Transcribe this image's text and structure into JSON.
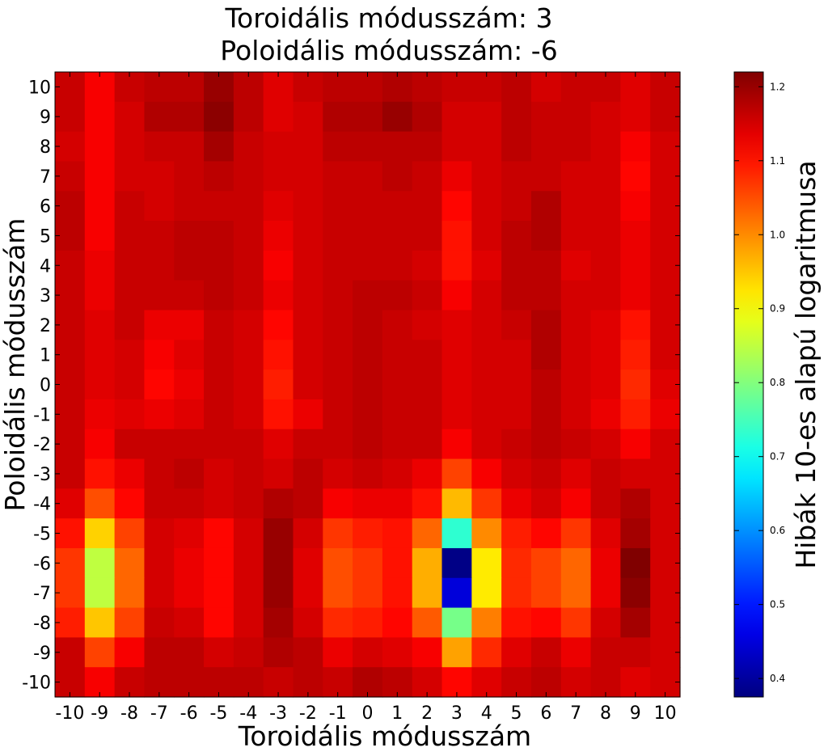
{
  "chart_data": {
    "type": "heatmap",
    "title": "Toroidális módusszám: 3",
    "subtitle": "Poloidális módusszám: -6",
    "xlabel": "Toroidális módusszám",
    "ylabel": "Poloidális módusszám",
    "colorbar_label": "Hibák 10-es alapú logaritmusa",
    "colormap": "jet",
    "color_range": [
      0.375,
      1.22
    ],
    "colorbar_ticks": [
      "0.4",
      "0.5",
      "0.6",
      "0.7",
      "0.8",
      "0.9",
      "1.0",
      "1.1",
      "1.2"
    ],
    "colorbar_tick_values": [
      0.4,
      0.5,
      0.6,
      0.7,
      0.8,
      0.9,
      1.0,
      1.1,
      1.2
    ],
    "x": [
      -10,
      -9,
      -8,
      -7,
      -6,
      -5,
      -4,
      -3,
      -2,
      -1,
      0,
      1,
      2,
      3,
      4,
      5,
      6,
      7,
      8,
      9,
      10
    ],
    "y": [
      10,
      9,
      8,
      7,
      6,
      5,
      4,
      3,
      2,
      1,
      0,
      -1,
      -2,
      -3,
      -4,
      -5,
      -6,
      -7,
      -8,
      -9,
      -10
    ],
    "x_tick_labels": [
      "-10",
      "-9",
      "-8",
      "-7",
      "-6",
      "-5",
      "-4",
      "-3",
      "-2",
      "-1",
      "0",
      "1",
      "2",
      "3",
      "4",
      "5",
      "6",
      "7",
      "8",
      "9",
      "10"
    ],
    "y_tick_labels": [
      "10",
      "9",
      "8",
      "7",
      "6",
      "5",
      "4",
      "3",
      "2",
      "1",
      "0",
      "-1",
      "-2",
      "-3",
      "-4",
      "-5",
      "-6",
      "-7",
      "-8",
      "-9",
      "-10"
    ],
    "z": [
      [
        1.16,
        1.12,
        1.16,
        1.17,
        1.17,
        1.2,
        1.17,
        1.14,
        1.16,
        1.17,
        1.17,
        1.18,
        1.17,
        1.16,
        1.16,
        1.17,
        1.15,
        1.16,
        1.16,
        1.14,
        1.16
      ],
      [
        1.16,
        1.12,
        1.15,
        1.18,
        1.18,
        1.21,
        1.17,
        1.14,
        1.15,
        1.18,
        1.18,
        1.2,
        1.18,
        1.15,
        1.15,
        1.17,
        1.16,
        1.16,
        1.15,
        1.14,
        1.16
      ],
      [
        1.15,
        1.12,
        1.15,
        1.16,
        1.16,
        1.19,
        1.16,
        1.15,
        1.15,
        1.17,
        1.17,
        1.17,
        1.17,
        1.15,
        1.15,
        1.17,
        1.16,
        1.16,
        1.15,
        1.12,
        1.15
      ],
      [
        1.16,
        1.12,
        1.15,
        1.15,
        1.16,
        1.17,
        1.16,
        1.15,
        1.15,
        1.16,
        1.16,
        1.17,
        1.16,
        1.13,
        1.15,
        1.16,
        1.16,
        1.15,
        1.15,
        1.11,
        1.15
      ],
      [
        1.17,
        1.12,
        1.16,
        1.15,
        1.16,
        1.16,
        1.16,
        1.14,
        1.15,
        1.16,
        1.16,
        1.16,
        1.16,
        1.11,
        1.15,
        1.16,
        1.18,
        1.15,
        1.15,
        1.12,
        1.15
      ],
      [
        1.17,
        1.12,
        1.16,
        1.16,
        1.17,
        1.17,
        1.16,
        1.13,
        1.15,
        1.16,
        1.16,
        1.16,
        1.16,
        1.1,
        1.15,
        1.17,
        1.18,
        1.15,
        1.15,
        1.13,
        1.15
      ],
      [
        1.16,
        1.13,
        1.16,
        1.16,
        1.17,
        1.17,
        1.16,
        1.12,
        1.15,
        1.16,
        1.16,
        1.16,
        1.15,
        1.1,
        1.14,
        1.17,
        1.17,
        1.14,
        1.15,
        1.13,
        1.15
      ],
      [
        1.16,
        1.13,
        1.16,
        1.16,
        1.16,
        1.17,
        1.16,
        1.13,
        1.15,
        1.16,
        1.17,
        1.17,
        1.16,
        1.12,
        1.15,
        1.17,
        1.17,
        1.15,
        1.15,
        1.13,
        1.15
      ],
      [
        1.16,
        1.14,
        1.16,
        1.13,
        1.13,
        1.16,
        1.15,
        1.11,
        1.15,
        1.16,
        1.17,
        1.16,
        1.15,
        1.14,
        1.15,
        1.16,
        1.18,
        1.15,
        1.14,
        1.1,
        1.15
      ],
      [
        1.16,
        1.14,
        1.15,
        1.12,
        1.14,
        1.16,
        1.15,
        1.1,
        1.15,
        1.16,
        1.17,
        1.16,
        1.16,
        1.14,
        1.15,
        1.15,
        1.18,
        1.15,
        1.14,
        1.09,
        1.15
      ],
      [
        1.16,
        1.14,
        1.15,
        1.11,
        1.13,
        1.16,
        1.15,
        1.09,
        1.15,
        1.16,
        1.17,
        1.16,
        1.16,
        1.14,
        1.15,
        1.15,
        1.17,
        1.15,
        1.14,
        1.08,
        1.14
      ],
      [
        1.16,
        1.13,
        1.14,
        1.13,
        1.14,
        1.16,
        1.15,
        1.1,
        1.13,
        1.16,
        1.17,
        1.16,
        1.16,
        1.14,
        1.15,
        1.15,
        1.17,
        1.15,
        1.13,
        1.09,
        1.13
      ],
      [
        1.16,
        1.12,
        1.16,
        1.16,
        1.16,
        1.16,
        1.16,
        1.14,
        1.16,
        1.16,
        1.17,
        1.16,
        1.16,
        1.12,
        1.15,
        1.16,
        1.17,
        1.16,
        1.15,
        1.12,
        1.15
      ],
      [
        1.16,
        1.1,
        1.13,
        1.16,
        1.17,
        1.15,
        1.16,
        1.15,
        1.17,
        1.15,
        1.16,
        1.15,
        1.13,
        1.06,
        1.12,
        1.15,
        1.16,
        1.14,
        1.16,
        1.15,
        1.15
      ],
      [
        1.14,
        1.05,
        1.11,
        1.16,
        1.16,
        1.15,
        1.16,
        1.18,
        1.17,
        1.12,
        1.13,
        1.13,
        1.1,
        0.96,
        1.07,
        1.13,
        1.15,
        1.12,
        1.16,
        1.18,
        1.15
      ],
      [
        1.1,
        0.94,
        1.06,
        1.15,
        1.14,
        1.11,
        1.15,
        1.2,
        1.15,
        1.07,
        1.09,
        1.1,
        1.03,
        0.73,
        1.0,
        1.09,
        1.11,
        1.07,
        1.14,
        1.19,
        1.15
      ],
      [
        1.07,
        0.85,
        1.03,
        1.15,
        1.13,
        1.11,
        1.15,
        1.2,
        1.14,
        1.05,
        1.07,
        1.1,
        0.97,
        0.38,
        0.92,
        1.08,
        1.06,
        1.03,
        1.13,
        1.22,
        1.15
      ],
      [
        1.07,
        0.85,
        1.03,
        1.15,
        1.13,
        1.11,
        1.15,
        1.2,
        1.14,
        1.05,
        1.07,
        1.1,
        0.97,
        0.45,
        0.92,
        1.08,
        1.06,
        1.03,
        1.13,
        1.21,
        1.15
      ],
      [
        1.09,
        0.95,
        1.06,
        1.16,
        1.15,
        1.11,
        1.15,
        1.19,
        1.15,
        1.08,
        1.09,
        1.11,
        1.04,
        0.79,
        1.01,
        1.1,
        1.11,
        1.07,
        1.15,
        1.19,
        1.15
      ],
      [
        1.16,
        1.06,
        1.12,
        1.17,
        1.17,
        1.15,
        1.16,
        1.18,
        1.17,
        1.13,
        1.15,
        1.14,
        1.12,
        0.98,
        1.08,
        1.14,
        1.16,
        1.13,
        1.16,
        1.16,
        1.15
      ],
      [
        1.16,
        1.12,
        1.16,
        1.17,
        1.17,
        1.17,
        1.17,
        1.16,
        1.17,
        1.16,
        1.18,
        1.17,
        1.15,
        1.11,
        1.14,
        1.16,
        1.17,
        1.15,
        1.16,
        1.14,
        1.15
      ]
    ]
  }
}
